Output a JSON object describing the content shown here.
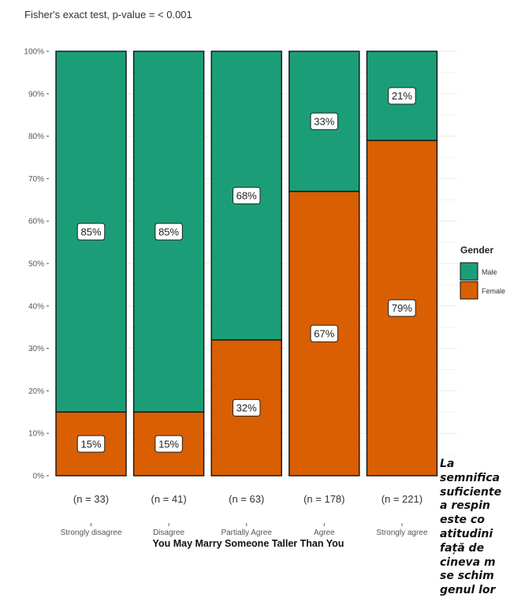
{
  "chart_data": {
    "type": "bar",
    "stacked": true,
    "percent": true,
    "title": "",
    "subtitle": "Fisher's exact test, p-value = < 0.001",
    "xlabel": "You May Marry Someone Taller Than You",
    "ylabel": "",
    "ylim": [
      0,
      100
    ],
    "y_ticks": [
      "0%",
      "10%",
      "20%",
      "30%",
      "40%",
      "50%",
      "60%",
      "70%",
      "80%",
      "90%",
      "100%"
    ],
    "grid": true,
    "categories": [
      "Strongly disagree",
      "Disagree",
      "Partially Agree",
      "Agree",
      "Strongly agree"
    ],
    "n_labels": [
      "(n = 33)",
      "(n = 41)",
      "(n = 63)",
      "(n = 178)",
      "(n = 221)"
    ],
    "series": [
      {
        "name": "Female",
        "color": "#d95f02",
        "values": [
          15,
          15,
          32,
          67,
          79
        ],
        "labels": [
          "15%",
          "15%",
          "32%",
          "67%",
          "79%"
        ]
      },
      {
        "name": "Male",
        "color": "#1b9e77",
        "values": [
          85,
          85,
          68,
          33,
          21
        ],
        "labels": [
          "85%",
          "85%",
          "68%",
          "33%",
          "21%"
        ]
      }
    ],
    "legend": {
      "title": "Gender",
      "position": "right",
      "entries": [
        {
          "label": "Male",
          "color": "#1b9e77"
        },
        {
          "label": "Female",
          "color": "#d95f02"
        }
      ]
    }
  },
  "side_text": "La\nsemnifica\nsuficiente\na respin\neste co\natitudini\nfață de\ncineva m\nse schim\ngenul lor"
}
